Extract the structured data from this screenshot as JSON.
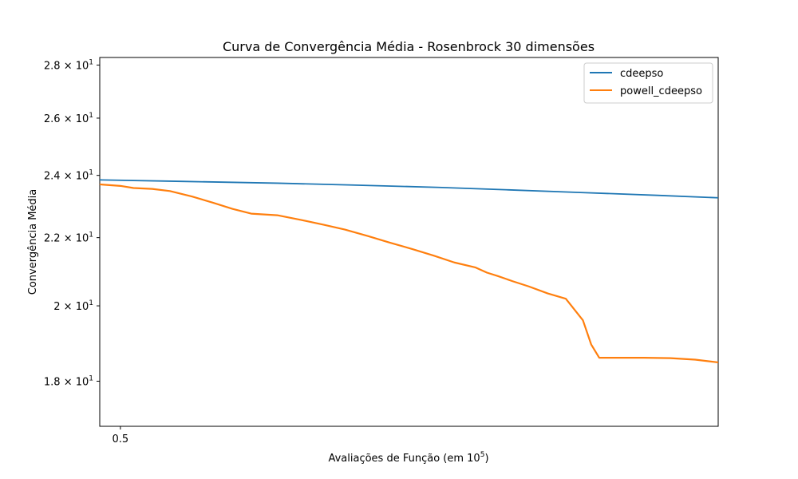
{
  "chart_data": {
    "type": "line",
    "title": "Curva de Convergência Média - Rosenbrock 30 dimensões",
    "xlabel_main": "Avaliações de Função (em 10",
    "xlabel_exp": "5",
    "xlabel_close": ")",
    "ylabel": "Convergência Média",
    "x_scale": "log",
    "y_scale": "log",
    "xlim": [
      0.47,
      3.0
    ],
    "ylim": [
      16.9,
      28.3
    ],
    "grid": false,
    "legend_position": "top-right",
    "x_ticks": [
      {
        "value": 0.5,
        "label": "0.5"
      }
    ],
    "y_ticks": [
      {
        "value": 18,
        "mantissa": "1.8",
        "exp": "1"
      },
      {
        "value": 20,
        "mantissa": "2",
        "exp": "1"
      },
      {
        "value": 22,
        "mantissa": "2.2",
        "exp": "1"
      },
      {
        "value": 24,
        "mantissa": "2.4",
        "exp": "1"
      },
      {
        "value": 26,
        "mantissa": "2.6",
        "exp": "1"
      },
      {
        "value": 28,
        "mantissa": "2.8",
        "exp": "1"
      }
    ],
    "series": [
      {
        "name": "cdeepso",
        "color": "#1f77b4",
        "x": [
          0.47,
          0.6,
          0.8,
          1.0,
          1.3,
          1.6,
          2.0,
          2.5,
          3.0
        ],
        "y": [
          23.85,
          23.8,
          23.74,
          23.68,
          23.6,
          23.52,
          23.43,
          23.34,
          23.26
        ]
      },
      {
        "name": "powell_cdeepso",
        "color": "#ff7f0e",
        "x": [
          0.47,
          0.5,
          0.52,
          0.55,
          0.58,
          0.62,
          0.66,
          0.7,
          0.74,
          0.8,
          0.86,
          0.92,
          0.98,
          1.05,
          1.12,
          1.2,
          1.28,
          1.36,
          1.45,
          1.5,
          1.55,
          1.62,
          1.7,
          1.8,
          1.9,
          2.0,
          2.05,
          2.1,
          2.2,
          2.4,
          2.6,
          2.8,
          3.0
        ],
        "y": [
          23.7,
          23.65,
          23.58,
          23.55,
          23.48,
          23.3,
          23.1,
          22.9,
          22.75,
          22.7,
          22.55,
          22.4,
          22.25,
          22.05,
          21.85,
          21.65,
          21.45,
          21.25,
          21.1,
          20.95,
          20.85,
          20.7,
          20.55,
          20.35,
          20.2,
          19.6,
          18.95,
          18.6,
          18.6,
          18.6,
          18.59,
          18.55,
          18.48
        ]
      }
    ]
  }
}
